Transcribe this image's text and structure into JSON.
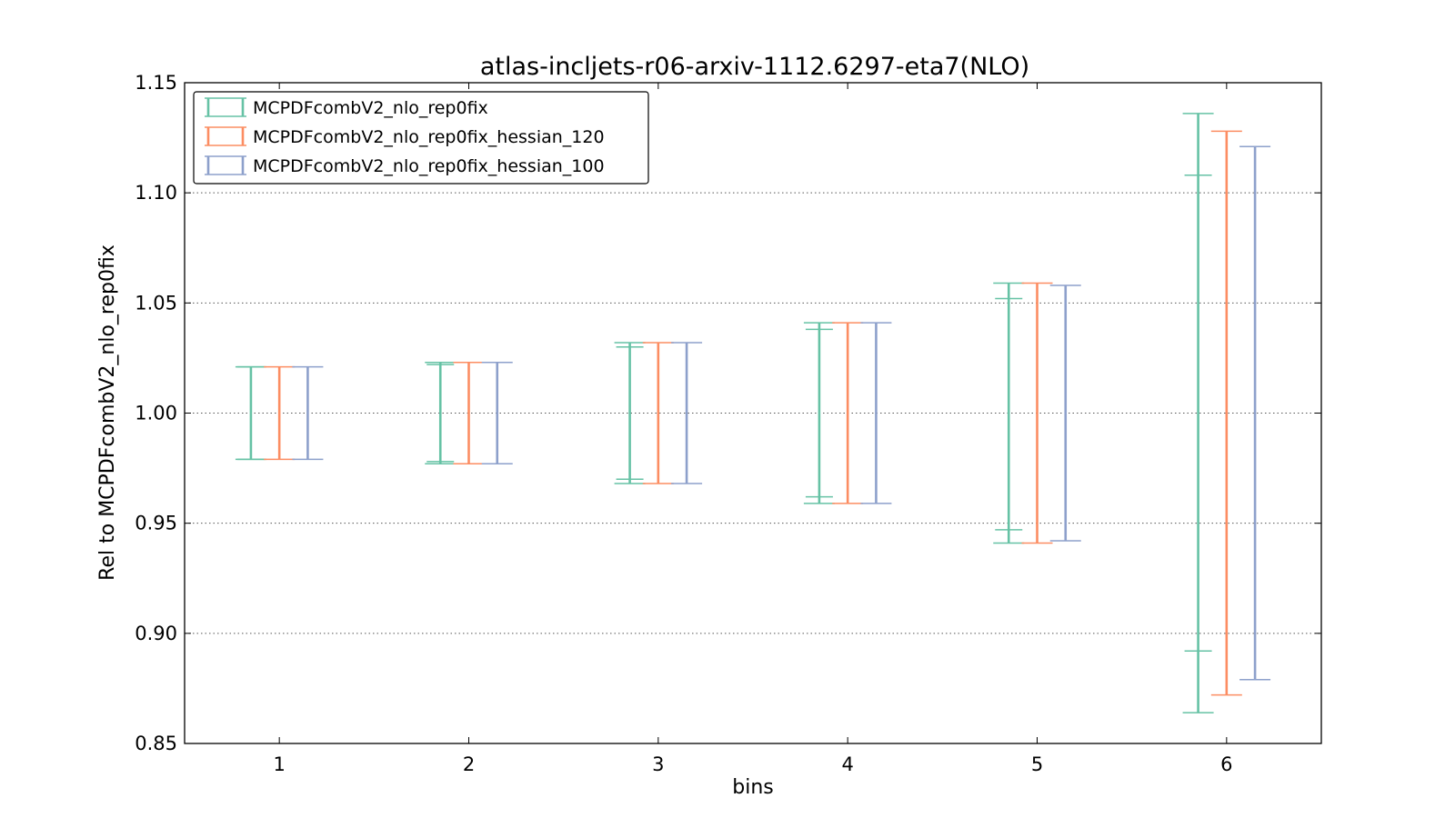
{
  "chart_data": {
    "type": "errorbar",
    "title": "atlas-incljets-r06-arxiv-1112.6297-eta7(NLO)",
    "xlabel": "bins",
    "ylabel": "Rel to MCPDFcombV2_nlo_rep0fix",
    "categories": [
      "1",
      "2",
      "3",
      "4",
      "5",
      "6"
    ],
    "xlim": [
      0.5,
      6.5
    ],
    "ylim": [
      0.85,
      1.15
    ],
    "yticks": [
      "0.85",
      "0.90",
      "0.95",
      "1.00",
      "1.05",
      "1.10",
      "1.15"
    ],
    "grid": "horizontal-dotted",
    "legend_position": "top-left",
    "series": [
      {
        "name": "MCPDFcombV2_nlo_rep0fix",
        "color": "#66c2a5",
        "outer": [
          [
            0.979,
            1.021
          ],
          [
            0.977,
            1.023
          ],
          [
            0.968,
            1.032
          ],
          [
            0.959,
            1.041
          ],
          [
            0.941,
            1.059
          ],
          [
            0.864,
            1.136
          ]
        ],
        "inner": [
          [
            0.979,
            1.021
          ],
          [
            0.978,
            1.022
          ],
          [
            0.97,
            1.03
          ],
          [
            0.962,
            1.038
          ],
          [
            0.947,
            1.052
          ],
          [
            0.892,
            1.108
          ]
        ]
      },
      {
        "name": "MCPDFcombV2_nlo_rep0fix_hessian_120",
        "color": "#fc8d62",
        "outer": [
          [
            0.979,
            1.021
          ],
          [
            0.977,
            1.023
          ],
          [
            0.968,
            1.032
          ],
          [
            0.959,
            1.041
          ],
          [
            0.941,
            1.059
          ],
          [
            0.872,
            1.128
          ]
        ]
      },
      {
        "name": "MCPDFcombV2_nlo_rep0fix_hessian_100",
        "color": "#8da0cb",
        "outer": [
          [
            0.979,
            1.021
          ],
          [
            0.977,
            1.023
          ],
          [
            0.968,
            1.032
          ],
          [
            0.959,
            1.041
          ],
          [
            0.942,
            1.058
          ],
          [
            0.879,
            1.121
          ]
        ]
      }
    ]
  }
}
